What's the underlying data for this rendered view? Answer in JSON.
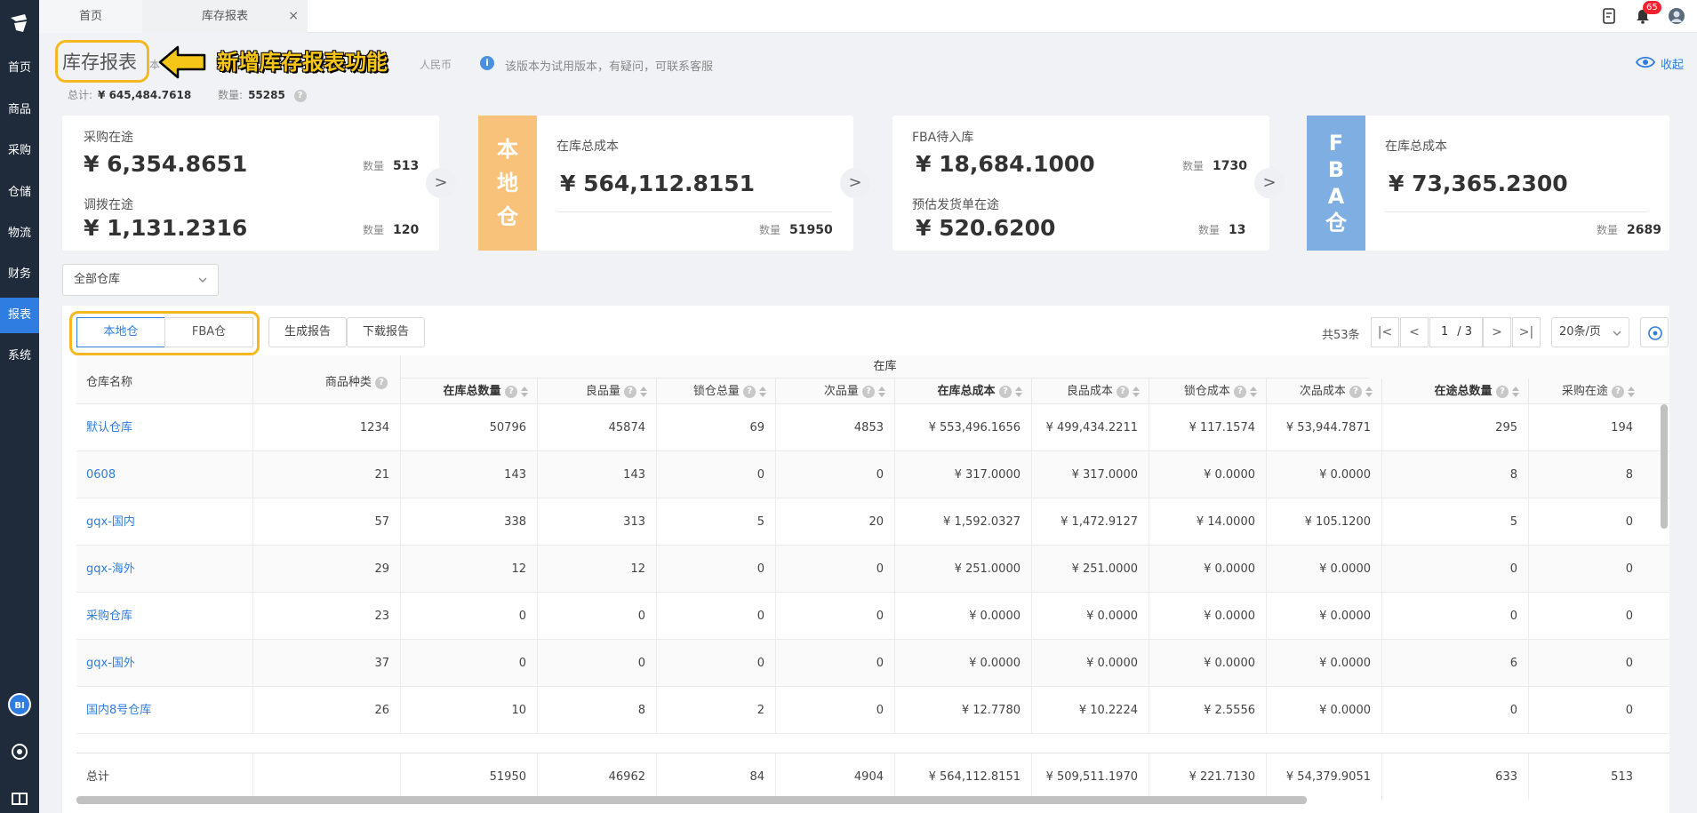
{
  "nav": {
    "items": [
      "首页",
      "商品",
      "采购",
      "仓储",
      "物流",
      "财务",
      "报表",
      "系统"
    ],
    "active": "报表",
    "bi": "BI"
  },
  "tabs": {
    "home": "首页",
    "report": "库存报表",
    "close": "×"
  },
  "notifications": {
    "count": "65"
  },
  "header": {
    "title": "库存报表",
    "callout": "新增库存报表功能",
    "faded_a": "本",
    "faded_b": "人民币",
    "info": "该版本为试用版本，有疑问，可联系客服",
    "collapse": "收起",
    "total_label": "总计:",
    "total_value": "¥ 645,484.7618",
    "qty_label": "数量:",
    "qty_value": "55285",
    "help": "?"
  },
  "cards": {
    "purchase": {
      "label1": "采购在途",
      "value1": "¥ 6,354.8651",
      "qty_label1": "数量",
      "qty1": "513",
      "label2": "调拨在途",
      "value2": "¥ 1,131.2316",
      "qty_label2": "数量",
      "qty2": "120"
    },
    "local": {
      "side": [
        "本",
        "地",
        "仓"
      ],
      "label": "在库总成本",
      "value": "¥ 564,112.8151",
      "qty_label": "数量",
      "qty": "51950"
    },
    "fba_pending": {
      "label1": "FBA待入库",
      "value1": "¥ 18,684.1000",
      "qty_label1": "数量",
      "qty1": "1730",
      "label2": "预估发货单在途",
      "value2": "¥ 520.6200",
      "qty_label2": "数量",
      "qty2": "13"
    },
    "fba": {
      "side": [
        "F",
        "B",
        "A",
        "仓"
      ],
      "label": "在库总成本",
      "value": "¥ 73,365.2300",
      "qty_label": "数量",
      "qty": "2689"
    },
    "next": ">"
  },
  "filter": {
    "warehouse": "全部仓库"
  },
  "toolbar": {
    "seg_local": "本地仓",
    "seg_fba": "FBA仓",
    "generate": "生成报告",
    "download": "下载报告"
  },
  "pager": {
    "total": "共53条",
    "first": "|<",
    "prev": "<",
    "next": ">",
    "last": ">|",
    "page": "1",
    "pages": "/ 3",
    "size": "20条/页"
  },
  "table": {
    "group_header": "在库",
    "col_name": "仓库名称",
    "col_kinds": "商品种类",
    "subcols": [
      "在库总数量",
      "良品量",
      "锁仓总量",
      "次品量",
      "在库总成本",
      "良品成本",
      "锁仓成本",
      "次品成本",
      "在途总数量",
      "采购在途"
    ],
    "rows": [
      [
        "默认仓库",
        "1234",
        "50796",
        "45874",
        "69",
        "4853",
        "¥ 553,496.1656",
        "¥ 499,434.2211",
        "¥ 117.1574",
        "¥ 53,944.7871",
        "295",
        "194"
      ],
      [
        "0608",
        "21",
        "143",
        "143",
        "0",
        "0",
        "¥ 317.0000",
        "¥ 317.0000",
        "¥ 0.0000",
        "¥ 0.0000",
        "8",
        "8"
      ],
      [
        "gqx-国内",
        "57",
        "338",
        "313",
        "5",
        "20",
        "¥ 1,592.0327",
        "¥ 1,472.9127",
        "¥ 14.0000",
        "¥ 105.1200",
        "5",
        "0"
      ],
      [
        "gqx-海外",
        "29",
        "12",
        "12",
        "0",
        "0",
        "¥ 251.0000",
        "¥ 251.0000",
        "¥ 0.0000",
        "¥ 0.0000",
        "0",
        "0"
      ],
      [
        "采购仓库",
        "23",
        "0",
        "0",
        "0",
        "0",
        "¥ 0.0000",
        "¥ 0.0000",
        "¥ 0.0000",
        "¥ 0.0000",
        "0",
        "0"
      ],
      [
        "gqx-国外",
        "37",
        "0",
        "0",
        "0",
        "0",
        "¥ 0.0000",
        "¥ 0.0000",
        "¥ 0.0000",
        "¥ 0.0000",
        "6",
        "0"
      ],
      [
        "国内8号仓库",
        "26",
        "10",
        "8",
        "2",
        "0",
        "¥ 12.7780",
        "¥ 10.2224",
        "¥ 2.5556",
        "¥ 0.0000",
        "0",
        "0"
      ]
    ],
    "totals": [
      "总计",
      "",
      "51950",
      "46962",
      "84",
      "4904",
      "¥ 564,112.8151",
      "¥ 509,511.1970",
      "¥ 221.7130",
      "¥ 54,379.9051",
      "633",
      "513"
    ]
  }
}
